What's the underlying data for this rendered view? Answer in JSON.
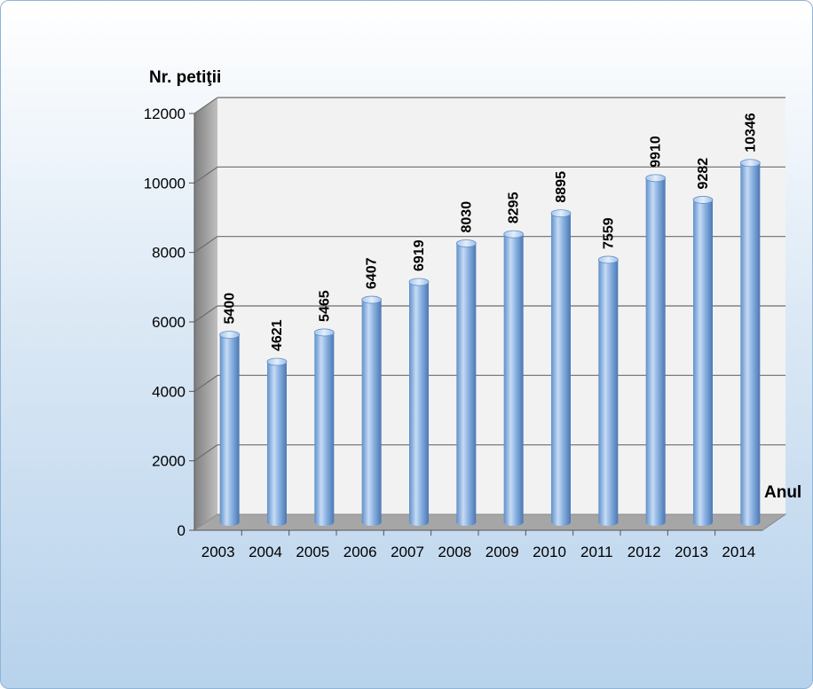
{
  "chart_data": {
    "type": "bar",
    "title": "",
    "ylabel": "Nr. petiţii",
    "xlabel": "Anul",
    "categories": [
      "2003",
      "2004",
      "2005",
      "2006",
      "2007",
      "2008",
      "2009",
      "2010",
      "2011",
      "2012",
      "2013",
      "2014"
    ],
    "values": [
      5400,
      4621,
      5465,
      6407,
      6919,
      8030,
      8295,
      8895,
      7559,
      9910,
      9282,
      10346
    ],
    "data_labels": [
      "5400",
      "4621",
      "5465",
      "6407",
      "6919",
      "8030",
      "8295",
      "8895",
      "7559",
      "9910",
      "9282",
      "10346"
    ],
    "ylim": [
      0,
      12000
    ],
    "yticks": [
      "0",
      "2000",
      "4000",
      "6000",
      "8000",
      "10000",
      "12000"
    ],
    "grid": true,
    "legend": "none",
    "colors": {
      "bar": "#8db3e2",
      "bar_dark": "#4f81bd",
      "wall": "#f2f2f2",
      "side_wall": "#a6a6a6"
    }
  }
}
